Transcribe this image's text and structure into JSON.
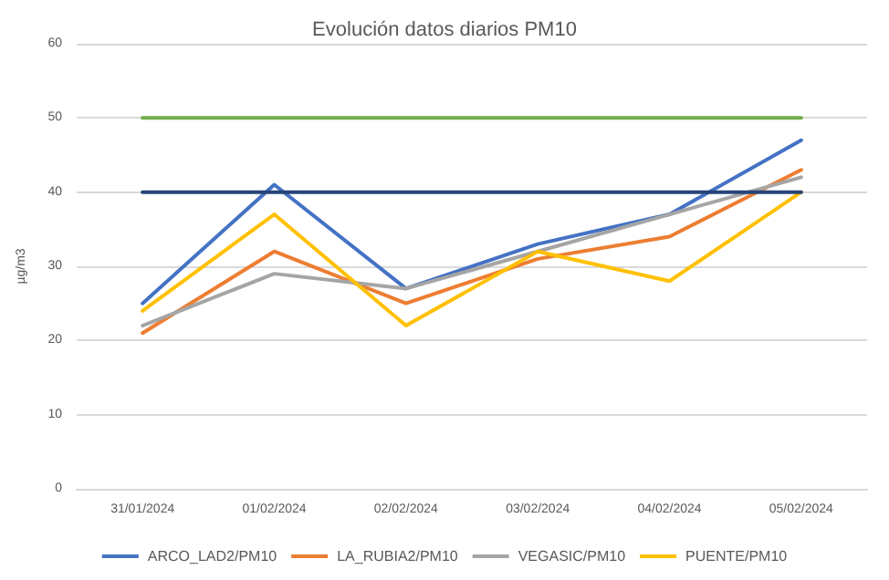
{
  "chart_data": {
    "type": "line",
    "title": "Evolución datos diarios PM10",
    "ylabel": "µg/m3",
    "categories": [
      "31/01/2024",
      "01/02/2024",
      "02/02/2024",
      "03/02/2024",
      "04/02/2024",
      "05/02/2024"
    ],
    "series": [
      {
        "name": "ARCO_LAD2/PM10",
        "color": "#4472c4",
        "values": [
          25,
          41,
          27,
          33,
          37,
          47
        ]
      },
      {
        "name": "LA_RUBIA2/PM10",
        "color": "#ed7d31",
        "values": [
          21,
          32,
          25,
          31,
          34,
          43
        ]
      },
      {
        "name": "VEGASIC/PM10",
        "color": "#a5a5a5",
        "values": [
          22,
          29,
          27,
          32,
          37,
          42
        ]
      },
      {
        "name": "PUENTE/PM10",
        "color": "#ffc000",
        "values": [
          24,
          37,
          22,
          32,
          28,
          40
        ]
      },
      {
        "color": "#70ad47",
        "values": [
          50,
          50,
          50,
          50,
          50,
          50
        ]
      },
      {
        "color": "#264478",
        "values": [
          40,
          40,
          40,
          40,
          40,
          40
        ]
      }
    ],
    "ylim": [
      0,
      60
    ],
    "yticks": [
      0,
      10,
      20,
      30,
      40,
      50,
      60
    ],
    "grid": "y",
    "legend": "bottom",
    "marker": "none",
    "line_style": "solid"
  }
}
